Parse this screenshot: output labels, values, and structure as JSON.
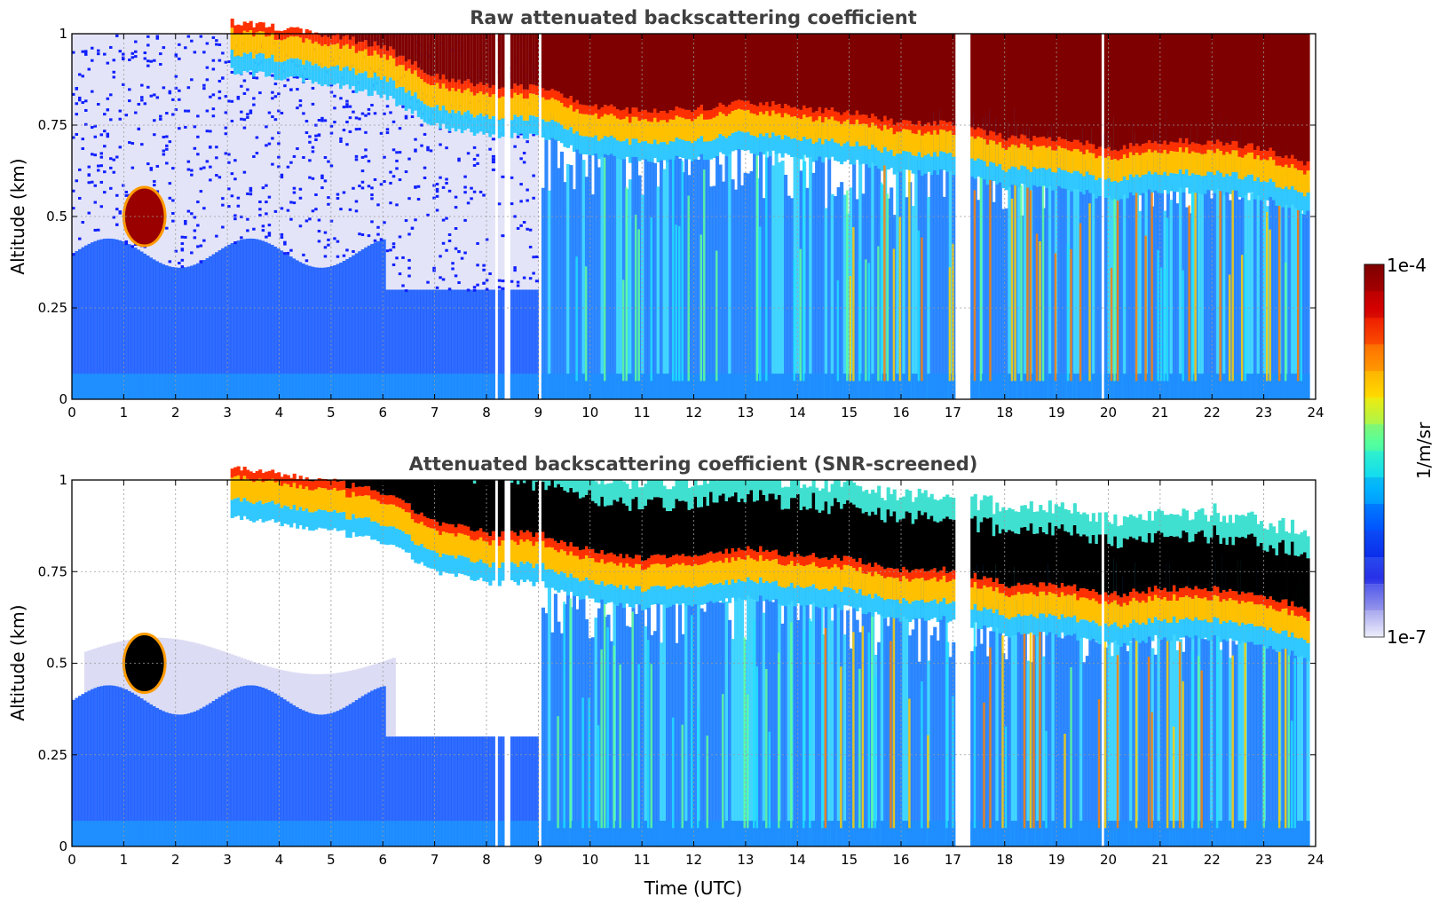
{
  "chart_data": [
    {
      "type": "heatmap",
      "title": "Raw attenuated backscattering coefficient",
      "xlabel": "",
      "ylabel": "Altitude (km)",
      "xlim": [
        0,
        24
      ],
      "ylim": [
        0,
        1
      ],
      "xticks": [
        "0",
        "1",
        "2",
        "3",
        "4",
        "5",
        "6",
        "7",
        "8",
        "9",
        "10",
        "11",
        "12",
        "13",
        "14",
        "15",
        "16",
        "17",
        "18",
        "19",
        "20",
        "21",
        "22",
        "23",
        "24"
      ],
      "yticks": [
        "0",
        "0.25",
        "0.5",
        "0.75",
        "1"
      ],
      "grid": true,
      "colormap": "jet",
      "data_gaps_utc": [
        [
          8.15,
          8.2
        ],
        [
          8.3,
          8.4
        ],
        [
          8.95,
          9.05
        ],
        [
          17.0,
          17.3
        ],
        [
          19.8,
          19.9
        ]
      ],
      "cloud_layer": {
        "times": [
          0,
          1,
          2,
          3,
          4,
          5,
          6,
          7,
          8,
          9,
          10,
          11,
          12,
          13,
          14,
          15,
          16,
          17,
          18,
          19,
          20,
          21,
          22,
          23,
          24
        ],
        "base_km": [
          null,
          null,
          null,
          1.0,
          0.98,
          0.96,
          0.93,
          0.85,
          0.82,
          0.82,
          0.77,
          0.75,
          0.76,
          0.78,
          0.76,
          0.75,
          0.72,
          0.72,
          0.68,
          0.68,
          0.65,
          0.67,
          0.67,
          0.65,
          0.6
        ]
      },
      "low_cloud": {
        "time_range": [
          1.0,
          1.8
        ],
        "altitude_range_km": [
          0.42,
          0.58
        ]
      }
    },
    {
      "type": "heatmap",
      "title": "Attenuated backscattering coefficient (SNR-screened)",
      "xlabel": "Time (UTC)",
      "ylabel": "Altitude (km)",
      "xlim": [
        0,
        24
      ],
      "ylim": [
        0,
        1
      ],
      "xticks": [
        "0",
        "1",
        "2",
        "3",
        "4",
        "5",
        "6",
        "7",
        "8",
        "9",
        "10",
        "11",
        "12",
        "13",
        "14",
        "15",
        "16",
        "17",
        "18",
        "19",
        "20",
        "21",
        "22",
        "23",
        "24"
      ],
      "yticks": [
        "0",
        "0.25",
        "0.5",
        "0.75",
        "1"
      ],
      "grid": true,
      "colormap": "jet",
      "saturated_color": "#000000",
      "data_gaps_utc": [
        [
          8.15,
          8.2
        ],
        [
          8.3,
          8.4
        ],
        [
          8.95,
          9.05
        ],
        [
          17.0,
          17.3
        ],
        [
          19.8,
          19.9
        ]
      ]
    }
  ],
  "colorbar": {
    "max_label": "1e-4",
    "min_label": "1e-7",
    "label": "1/m/sr",
    "colors": [
      "#7f0000",
      "#c00000",
      "#ff2a00",
      "#ff8a00",
      "#ffd800",
      "#c8ff30",
      "#5aff9a",
      "#10e8ff",
      "#0090ff",
      "#0030ff",
      "#2020e0",
      "#7070e8",
      "#b8b8f0",
      "#ececfa"
    ]
  }
}
